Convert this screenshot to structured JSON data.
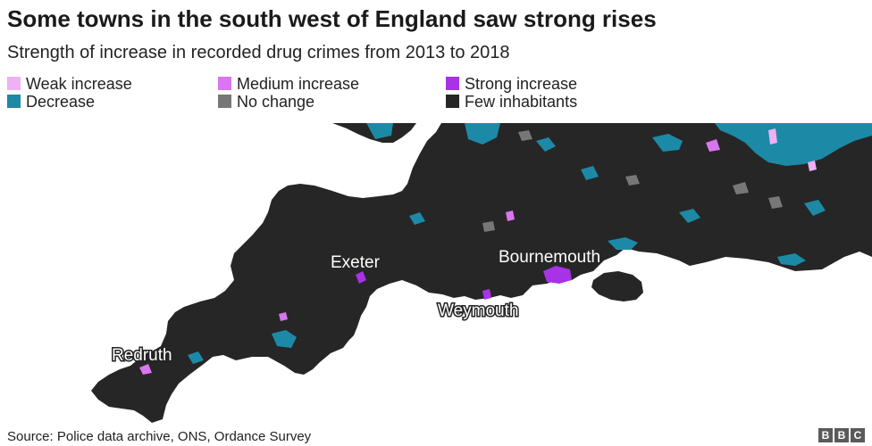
{
  "title": "Some towns in the south west of England saw strong rises",
  "subtitle": "Strength of increase in recorded drug crimes from 2013 to 2018",
  "legend": [
    {
      "label": "Weak increase",
      "color": "#f0b0f5"
    },
    {
      "label": "Medium increase",
      "color": "#d975f0"
    },
    {
      "label": "Strong increase",
      "color": "#a832e6"
    },
    {
      "label": "Decrease",
      "color": "#1c8aa6"
    },
    {
      "label": "No change",
      "color": "#777777"
    },
    {
      "label": "Few inhabitants",
      "color": "#262626"
    }
  ],
  "places": [
    "Exeter",
    "Bournemouth",
    "Weymouth",
    "Redruth"
  ],
  "source": "Source: Police data archive, ONS, Ordance Survey",
  "brand": [
    "B",
    "B",
    "C"
  ]
}
